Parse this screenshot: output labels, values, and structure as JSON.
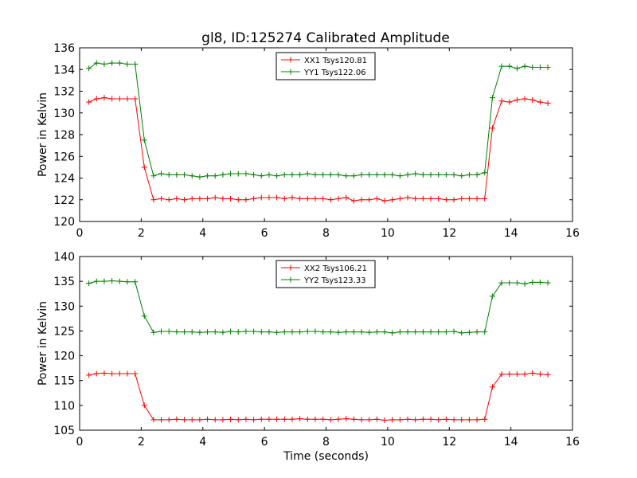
{
  "figure": {
    "title": "gl8, ID:125274 Calibrated Amplitude"
  },
  "chart_data": [
    {
      "type": "line",
      "title": "gl8, ID:125274 Calibrated Amplitude",
      "xlabel": "",
      "ylabel": "Power in Kelvin",
      "xlim": [
        0,
        16
      ],
      "ylim": [
        120,
        136
      ],
      "xticks": [
        0,
        2,
        4,
        6,
        8,
        10,
        12,
        14,
        16
      ],
      "yticks": [
        120,
        122,
        124,
        126,
        128,
        130,
        132,
        134,
        136
      ],
      "grid": false,
      "legend": "top-center",
      "x": [
        0.3,
        0.55,
        0.8,
        1.05,
        1.3,
        1.55,
        1.8,
        2.1,
        2.4,
        2.65,
        2.9,
        3.15,
        3.4,
        3.65,
        3.9,
        4.15,
        4.4,
        4.65,
        4.9,
        5.15,
        5.4,
        5.65,
        5.9,
        6.15,
        6.4,
        6.65,
        6.9,
        7.15,
        7.4,
        7.65,
        7.9,
        8.15,
        8.4,
        8.65,
        8.9,
        9.15,
        9.4,
        9.65,
        9.9,
        10.15,
        10.4,
        10.65,
        10.9,
        11.15,
        11.4,
        11.65,
        11.9,
        12.15,
        12.4,
        12.65,
        12.9,
        13.15,
        13.4,
        13.7,
        13.95,
        14.2,
        14.45,
        14.7,
        14.95,
        15.2
      ],
      "series": [
        {
          "name": "XX1 Tsys120.81",
          "color": "#ff0000",
          "values": [
            131.0,
            131.3,
            131.4,
            131.3,
            131.3,
            131.3,
            131.3,
            125.0,
            122.0,
            122.1,
            122.0,
            122.1,
            122.0,
            122.1,
            122.1,
            122.1,
            122.2,
            122.1,
            122.1,
            122.0,
            122.0,
            122.1,
            122.2,
            122.2,
            122.2,
            122.1,
            122.2,
            122.1,
            122.1,
            122.1,
            122.1,
            122.0,
            122.1,
            122.2,
            121.9,
            122.0,
            122.0,
            122.1,
            121.9,
            122.0,
            122.1,
            122.2,
            122.1,
            122.1,
            122.1,
            122.1,
            122.0,
            122.0,
            122.1,
            122.1,
            122.1,
            122.1,
            128.6,
            131.1,
            131.0,
            131.2,
            131.3,
            131.2,
            131.0,
            130.9
          ]
        },
        {
          "name": "YY1 Tsys122.06",
          "color": "#008000",
          "values": [
            134.1,
            134.6,
            134.5,
            134.6,
            134.6,
            134.5,
            134.5,
            127.5,
            124.2,
            124.4,
            124.3,
            124.3,
            124.3,
            124.2,
            124.1,
            124.2,
            124.2,
            124.3,
            124.4,
            124.4,
            124.4,
            124.3,
            124.2,
            124.3,
            124.2,
            124.3,
            124.3,
            124.3,
            124.4,
            124.3,
            124.3,
            124.3,
            124.3,
            124.2,
            124.2,
            124.3,
            124.3,
            124.3,
            124.3,
            124.3,
            124.2,
            124.3,
            124.4,
            124.3,
            124.3,
            124.3,
            124.3,
            124.3,
            124.2,
            124.3,
            124.3,
            124.5,
            131.4,
            134.3,
            134.3,
            134.1,
            134.3,
            134.2,
            134.2,
            134.2
          ]
        }
      ]
    },
    {
      "type": "line",
      "xlabel": "Time (seconds)",
      "ylabel": "Power in Kelvin",
      "xlim": [
        0,
        16
      ],
      "ylim": [
        105,
        140
      ],
      "xticks": [
        0,
        2,
        4,
        6,
        8,
        10,
        12,
        14,
        16
      ],
      "yticks": [
        105,
        110,
        115,
        120,
        125,
        130,
        135,
        140
      ],
      "grid": false,
      "legend": "top-center",
      "x": [
        0.3,
        0.55,
        0.8,
        1.05,
        1.3,
        1.55,
        1.8,
        2.1,
        2.4,
        2.65,
        2.9,
        3.15,
        3.4,
        3.65,
        3.9,
        4.15,
        4.4,
        4.65,
        4.9,
        5.15,
        5.4,
        5.65,
        5.9,
        6.15,
        6.4,
        6.65,
        6.9,
        7.15,
        7.4,
        7.65,
        7.9,
        8.15,
        8.4,
        8.65,
        8.9,
        9.15,
        9.4,
        9.65,
        9.9,
        10.15,
        10.4,
        10.65,
        10.9,
        11.15,
        11.4,
        11.65,
        11.9,
        12.15,
        12.4,
        12.65,
        12.9,
        13.15,
        13.4,
        13.7,
        13.95,
        14.2,
        14.45,
        14.7,
        14.95,
        15.2
      ],
      "series": [
        {
          "name": "XX2 Tsys106.21",
          "color": "#ff0000",
          "values": [
            116.1,
            116.4,
            116.5,
            116.4,
            116.4,
            116.4,
            116.4,
            110.0,
            107.1,
            107.1,
            107.1,
            107.2,
            107.1,
            107.1,
            107.1,
            107.2,
            107.1,
            107.1,
            107.2,
            107.1,
            107.2,
            107.1,
            107.2,
            107.2,
            107.2,
            107.2,
            107.2,
            107.3,
            107.2,
            107.2,
            107.2,
            107.1,
            107.2,
            107.3,
            107.2,
            107.1,
            107.1,
            107.2,
            107.0,
            107.1,
            107.1,
            107.2,
            107.1,
            107.2,
            107.2,
            107.1,
            107.2,
            107.1,
            107.1,
            107.1,
            107.1,
            107.2,
            113.7,
            116.3,
            116.3,
            116.3,
            116.3,
            116.5,
            116.3,
            116.2
          ]
        },
        {
          "name": "YY2 Tsys123.33",
          "color": "#008000",
          "values": [
            134.6,
            135.0,
            135.0,
            135.1,
            135.0,
            134.9,
            134.9,
            128.0,
            124.7,
            124.9,
            124.9,
            124.8,
            124.8,
            124.8,
            124.7,
            124.8,
            124.8,
            124.7,
            124.9,
            124.8,
            124.9,
            124.9,
            124.8,
            124.8,
            124.7,
            124.8,
            124.8,
            124.8,
            124.9,
            124.9,
            124.8,
            124.8,
            124.7,
            124.8,
            124.8,
            124.8,
            124.7,
            124.8,
            124.8,
            124.6,
            124.8,
            124.8,
            124.8,
            124.8,
            124.8,
            124.8,
            124.8,
            124.9,
            124.6,
            124.7,
            124.8,
            124.8,
            132.0,
            134.7,
            134.7,
            134.7,
            134.5,
            134.8,
            134.8,
            134.7
          ]
        }
      ]
    }
  ]
}
